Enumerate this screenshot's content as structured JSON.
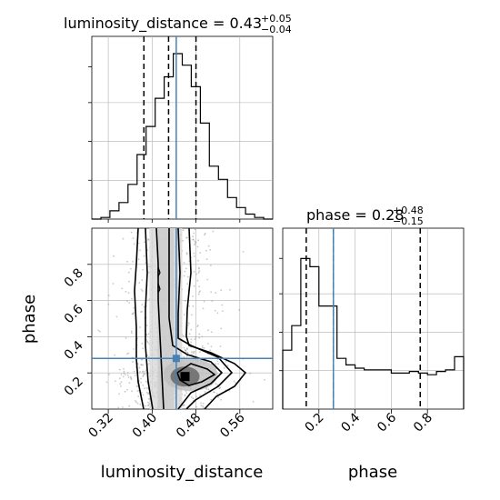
{
  "chart_data": {
    "type": "corner",
    "colors": {
      "truth": "#4682b4",
      "line": "#000000",
      "grid": "#b0b0b0"
    },
    "parameters": [
      "luminosity_distance",
      "phase"
    ],
    "titles": {
      "luminosity_distance": {
        "prefix": "luminosity_distance = 0.43",
        "plus": "+0.05",
        "minus": "−0.04"
      },
      "phase": {
        "prefix": "phase = 0.28",
        "plus": "+0.48",
        "minus": "−0.15"
      }
    },
    "axis_labels": {
      "x_left": "luminosity_distance",
      "x_right": "phase",
      "y_left": "phase"
    },
    "ranges": {
      "luminosity_distance": [
        0.29,
        0.62
      ],
      "phase": [
        0.0,
        1.0
      ]
    },
    "ticks": {
      "luminosity_distance": [
        "0.32",
        "0.40",
        "0.48",
        "0.56"
      ],
      "phase": [
        "0.2",
        "0.4",
        "0.6",
        "0.8"
      ]
    },
    "tick_values": {
      "luminosity_distance": [
        0.32,
        0.4,
        0.48,
        0.56
      ],
      "phase": [
        0.2,
        0.4,
        0.6,
        0.8
      ]
    },
    "grid": true,
    "truth": {
      "luminosity_distance": 0.444,
      "phase": 0.28
    },
    "quantile_lines": {
      "luminosity_distance": [
        0.385,
        0.43,
        0.48
      ],
      "phase": [
        0.13,
        0.28,
        0.76
      ]
    },
    "hist_luminosity_distance": {
      "edges": [
        0.29,
        0.3065,
        0.323,
        0.3395,
        0.356,
        0.3725,
        0.389,
        0.4055,
        0.422,
        0.4385,
        0.455,
        0.4715,
        0.488,
        0.5045,
        0.521,
        0.5375,
        0.554,
        0.5705,
        0.587,
        0.6035,
        0.62
      ],
      "counts": [
        0.0,
        0.01,
        0.05,
        0.1,
        0.21,
        0.39,
        0.56,
        0.73,
        0.86,
        1.0,
        0.93,
        0.8,
        0.58,
        0.32,
        0.24,
        0.13,
        0.07,
        0.03,
        0.01,
        0.0
      ]
    },
    "hist_phase": {
      "edges": [
        0.0,
        0.05,
        0.1,
        0.15,
        0.2,
        0.25,
        0.3,
        0.35,
        0.4,
        0.45,
        0.5,
        0.55,
        0.6,
        0.65,
        0.7,
        0.75,
        0.8,
        0.85,
        0.9,
        0.95,
        1.0
      ],
      "counts": [
        0.36,
        0.51,
        0.92,
        0.87,
        0.63,
        0.63,
        0.31,
        0.27,
        0.25,
        0.24,
        0.24,
        0.24,
        0.22,
        0.22,
        0.23,
        0.22,
        0.21,
        0.23,
        0.24,
        0.32
      ]
    },
    "density_peak": {
      "luminosity_distance": 0.46,
      "phase": 0.18
    }
  }
}
